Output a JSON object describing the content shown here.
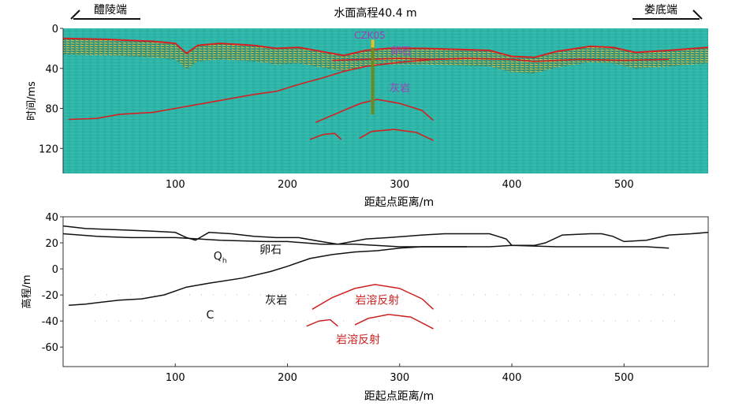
{
  "header": {
    "left_label": "醴陵端",
    "right_label": "娄底端",
    "title": "水面高程40.4 m"
  },
  "colors": {
    "radar_background": "#2fb5a8",
    "interpretation_line": "#d42020",
    "borehole": "#6e8a1e",
    "borehole_label": "#9b3fb8",
    "profile_line": "#111111",
    "karst_reflection": "#cc2222"
  },
  "chart_data": [
    {
      "type": "line",
      "panel": "radar-profile",
      "xlabel": "距起点距离/m",
      "ylabel": "时间/ms",
      "xlim": [
        0,
        575
      ],
      "ylim": [
        145,
        0
      ],
      "x_ticks": [
        100,
        200,
        300,
        400,
        500
      ],
      "y_ticks": [
        0,
        40,
        80,
        120
      ],
      "borehole": {
        "name": "CZK05",
        "x": 276,
        "y_top": 16,
        "y_bottom": 86
      },
      "annotations": [
        {
          "text": "卵石",
          "x": 292,
          "y": 26
        },
        {
          "text": "灰岩",
          "x": 291,
          "y": 63
        }
      ],
      "series": [
        {
          "values": [
            [
              0,
              10
            ],
            [
              40,
              11
            ],
            [
              80,
              13
            ],
            [
              100,
              15
            ],
            [
              110,
              25
            ],
            [
              120,
              17
            ],
            [
              140,
              15
            ],
            [
              170,
              17
            ],
            [
              190,
              20
            ],
            [
              210,
              19
            ],
            [
              230,
              23
            ],
            [
              250,
              27
            ],
            [
              270,
              22
            ],
            [
              290,
              20
            ],
            [
              320,
              20
            ],
            [
              350,
              21
            ],
            [
              380,
              22
            ],
            [
              400,
              28
            ],
            [
              420,
              29
            ],
            [
              440,
              23
            ],
            [
              470,
              18
            ],
            [
              490,
              19
            ],
            [
              510,
              24
            ],
            [
              540,
              22
            ],
            [
              575,
              19
            ]
          ]
        },
        {
          "values": [
            [
              240,
              32
            ],
            [
              270,
              31
            ],
            [
              300,
              30
            ],
            [
              330,
              31
            ],
            [
              360,
              30
            ],
            [
              400,
              31
            ],
            [
              420,
              33
            ],
            [
              440,
              32
            ],
            [
              460,
              31
            ],
            [
              500,
              32
            ],
            [
              540,
              31
            ]
          ]
        },
        {
          "values": [
            [
              5,
              91
            ],
            [
              30,
              90
            ],
            [
              50,
              86
            ],
            [
              80,
              84
            ],
            [
              110,
              78
            ],
            [
              140,
              72
            ],
            [
              170,
              66
            ],
            [
              190,
              63
            ],
            [
              210,
              56
            ],
            [
              230,
              50
            ],
            [
              250,
              43
            ],
            [
              270,
              38
            ],
            [
              300,
              34
            ],
            [
              330,
              31
            ],
            [
              360,
              30
            ]
          ]
        },
        {
          "values": [
            [
              225,
              94
            ],
            [
              250,
              82
            ],
            [
              265,
              75
            ],
            [
              280,
              71
            ],
            [
              300,
              75
            ],
            [
              320,
              82
            ],
            [
              330,
              92
            ]
          ]
        },
        {
          "values": [
            [
              220,
              111
            ],
            [
              232,
              106
            ],
            [
              242,
              105
            ],
            [
              248,
              111
            ]
          ]
        },
        {
          "values": [
            [
              264,
              110
            ],
            [
              275,
              103
            ],
            [
              295,
              101
            ],
            [
              315,
              104
            ],
            [
              330,
              112
            ]
          ]
        }
      ]
    },
    {
      "type": "line",
      "panel": "elevation-profile",
      "xlabel": "距起点距离/m",
      "ylabel": "高程/m",
      "xlim": [
        0,
        575
      ],
      "ylim": [
        -75,
        40
      ],
      "x_ticks": [
        100,
        200,
        300,
        400,
        500
      ],
      "y_ticks": [
        40,
        20,
        0,
        -20,
        -40,
        -60
      ],
      "dotted_lines_y": [
        -20,
        -40
      ],
      "annotations": [
        {
          "text": "Q",
          "subscript": "h",
          "x": 140,
          "y": 7,
          "color": "#111111"
        },
        {
          "text": "卵石",
          "x": 185,
          "y": 12,
          "color": "#111111"
        },
        {
          "text": "灰岩",
          "x": 190,
          "y": -27,
          "color": "#111111"
        },
        {
          "text": "C",
          "x": 131,
          "y": -38,
          "color": "#111111"
        },
        {
          "text": "岩溶反射",
          "x": 280,
          "y": -27,
          "color": "#cc2222"
        },
        {
          "text": "岩溶反射",
          "x": 263,
          "y": -57,
          "color": "#cc2222"
        }
      ],
      "series": [
        {
          "color": "#111111",
          "values": [
            [
              0,
              33
            ],
            [
              20,
              31
            ],
            [
              50,
              30
            ],
            [
              80,
              29
            ],
            [
              100,
              28
            ],
            [
              110,
              24
            ],
            [
              118,
              22
            ],
            [
              130,
              28
            ],
            [
              150,
              27
            ],
            [
              170,
              25
            ],
            [
              190,
              24
            ],
            [
              210,
              24
            ],
            [
              230,
              21
            ],
            [
              245,
              19
            ],
            [
              270,
              23
            ],
            [
              290,
              24
            ],
            [
              320,
              26
            ],
            [
              340,
              27
            ],
            [
              360,
              27
            ],
            [
              380,
              27
            ],
            [
              395,
              23
            ],
            [
              400,
              18
            ],
            [
              420,
              18
            ],
            [
              430,
              20
            ],
            [
              445,
              26
            ],
            [
              470,
              27
            ],
            [
              480,
              27
            ],
            [
              490,
              25
            ],
            [
              500,
              21
            ],
            [
              520,
              22
            ],
            [
              540,
              26
            ],
            [
              560,
              27
            ],
            [
              575,
              28
            ]
          ]
        },
        {
          "color": "#111111",
          "values": [
            [
              0,
              27
            ],
            [
              30,
              25
            ],
            [
              60,
              24
            ],
            [
              100,
              24
            ],
            [
              140,
              22
            ],
            [
              180,
              21
            ],
            [
              200,
              21
            ],
            [
              230,
              19
            ],
            [
              260,
              19
            ],
            [
              300,
              17
            ],
            [
              340,
              17
            ],
            [
              380,
              17
            ],
            [
              400,
              18
            ],
            [
              440,
              17
            ],
            [
              480,
              17
            ],
            [
              520,
              17
            ],
            [
              540,
              16
            ]
          ]
        },
        {
          "color": "#111111",
          "values": [
            [
              5,
              -28
            ],
            [
              20,
              -27
            ],
            [
              50,
              -24
            ],
            [
              70,
              -23
            ],
            [
              90,
              -20
            ],
            [
              110,
              -14
            ],
            [
              130,
              -11
            ],
            [
              160,
              -7
            ],
            [
              185,
              -2
            ],
            [
              200,
              2
            ],
            [
              220,
              8
            ],
            [
              240,
              11
            ],
            [
              260,
              13
            ],
            [
              280,
              14
            ],
            [
              300,
              16
            ],
            [
              320,
              17
            ],
            [
              340,
              17
            ],
            [
              360,
              17
            ]
          ]
        },
        {
          "color": "#cc2222",
          "values": [
            [
              222,
              -31
            ],
            [
              240,
              -22
            ],
            [
              260,
              -15
            ],
            [
              278,
              -12
            ],
            [
              300,
              -15
            ],
            [
              320,
              -23
            ],
            [
              330,
              -31
            ]
          ]
        },
        {
          "color": "#cc2222",
          "values": [
            [
              217,
              -44
            ],
            [
              228,
              -40
            ],
            [
              238,
              -39
            ],
            [
              245,
              -44
            ]
          ]
        },
        {
          "color": "#cc2222",
          "values": [
            [
              260,
              -43
            ],
            [
              272,
              -38
            ],
            [
              290,
              -35
            ],
            [
              310,
              -37
            ],
            [
              330,
              -46
            ]
          ]
        }
      ]
    }
  ]
}
